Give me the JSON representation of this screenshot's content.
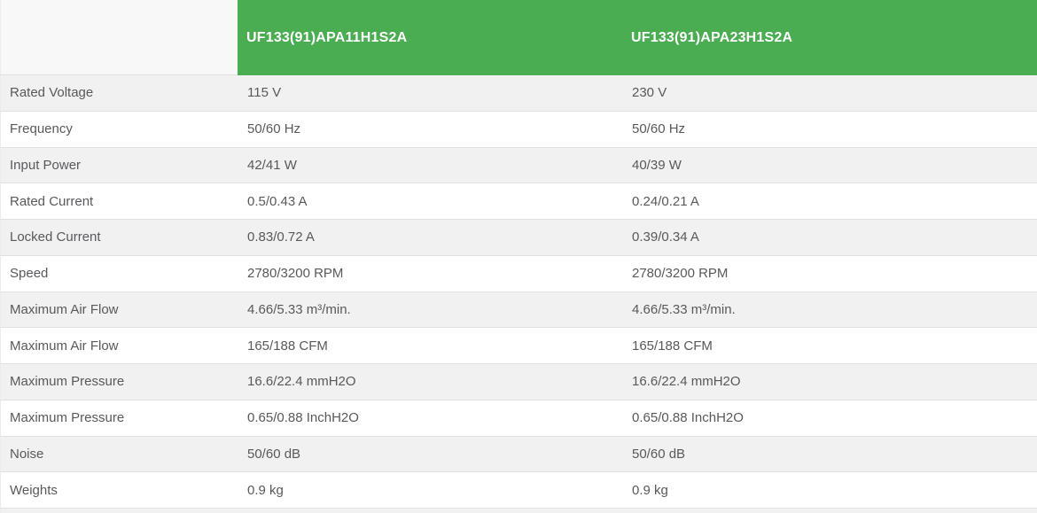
{
  "table": {
    "columns": [
      {
        "label": ""
      },
      {
        "label": "UF133(91)APA11H1S2A"
      },
      {
        "label": "UF133(91)APA23H1S2A"
      }
    ],
    "rows": [
      {
        "label": "Rated Voltage",
        "values": [
          "115 V",
          "230 V"
        ]
      },
      {
        "label": "Frequency",
        "values": [
          "50/60 Hz",
          "50/60 Hz"
        ]
      },
      {
        "label": "Input Power",
        "values": [
          "42/41 W",
          "40/39 W"
        ]
      },
      {
        "label": "Rated Current",
        "values": [
          "0.5/0.43 A",
          "0.24/0.21 A"
        ]
      },
      {
        "label": "Locked Current",
        "values": [
          "0.83/0.72 A",
          "0.39/0.34 A"
        ]
      },
      {
        "label": "Speed",
        "values": [
          "2780/3200 RPM",
          "2780/3200 RPM"
        ]
      },
      {
        "label": "Maximum Air Flow",
        "values": [
          "4.66/5.33 m³/min.",
          "4.66/5.33 m³/min."
        ]
      },
      {
        "label": "Maximum Air Flow",
        "values": [
          "165/188 CFM",
          "165/188 CFM"
        ]
      },
      {
        "label": "Maximum Pressure",
        "values": [
          "16.6/22.4 mmH2O",
          "16.6/22.4 mmH2O"
        ]
      },
      {
        "label": "Maximum Pressure",
        "values": [
          "0.65/0.88 InchH2O",
          "0.65/0.88 InchH2O"
        ]
      },
      {
        "label": "Noise",
        "values": [
          "50/60 dB",
          "50/60 dB"
        ]
      },
      {
        "label": "Weights",
        "values": [
          "0.9 kg",
          "0.9 kg"
        ]
      }
    ]
  },
  "colors": {
    "header_green": "#4bad52",
    "header_text": "#ffffff",
    "row_alt": "#f1f1f1",
    "border": "#e0e0e0",
    "edge": "#ececec",
    "corner_bg": "#f8f8f8",
    "text": "#58595c"
  }
}
